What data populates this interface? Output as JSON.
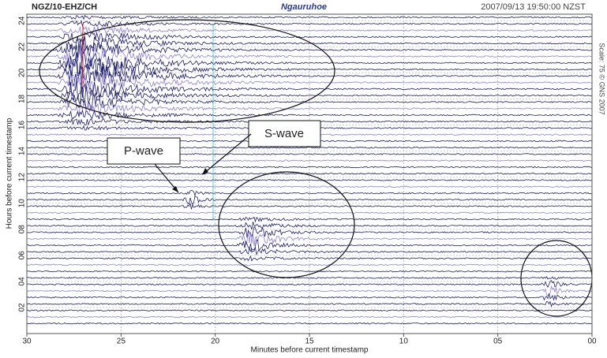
{
  "chart_data": {
    "type": "helicorder",
    "station": "NGZ/10-EHZ/CH",
    "title": "Ngauruhoe",
    "timestamp": "2007/09/13 19:50:00 NZST",
    "side_note": "Scale: 75 © GNS 2007",
    "xlabel": "Minutes before current timestamp",
    "ylabel": "Hours before current timestamp",
    "xlim": [
      30,
      0
    ],
    "xticks": [
      30,
      25,
      20,
      15,
      10,
      {
        "value": 5,
        "label": "05"
      },
      {
        "value": 0,
        "label": "00"
      }
    ],
    "ylim": [
      0,
      24.5
    ],
    "yticks": [
      24,
      22,
      20,
      18,
      16,
      14,
      12,
      10,
      {
        "value": 8,
        "label": "08"
      },
      {
        "value": 6,
        "label": "06"
      },
      {
        "value": 4,
        "label": "04"
      },
      {
        "value": 2,
        "label": "02"
      }
    ],
    "grid": true,
    "annotations": [
      "P-wave",
      "S-wave"
    ]
  }
}
